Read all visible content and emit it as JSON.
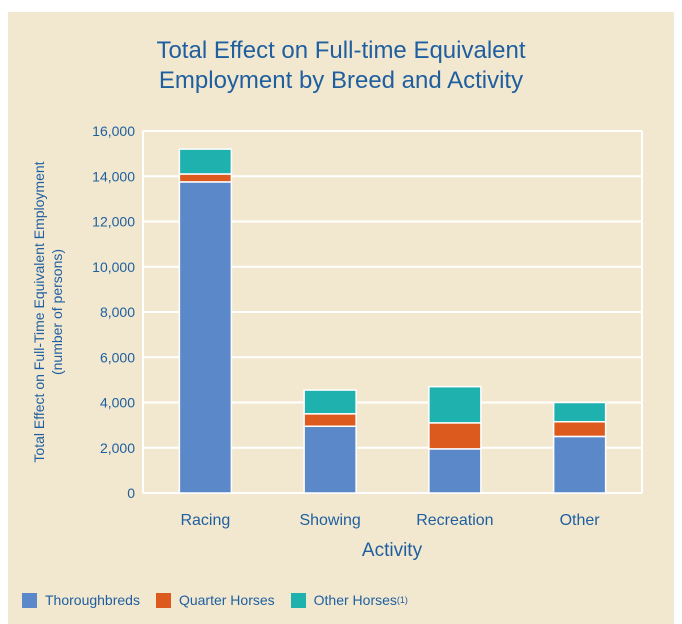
{
  "chart_data": {
    "type": "bar",
    "stacked": true,
    "title_lines": [
      "Total Effect on Full-time Equivalent",
      "Employment by Breed and Activity"
    ],
    "ylabel_lines": [
      "Total Effect on Full-Time Equivalent Employment",
      "(number of persons)"
    ],
    "xlabel": "Activity",
    "categories": [
      "Racing",
      "Showing",
      "Recreation",
      "Other"
    ],
    "series": [
      {
        "name": "Thoroughbreds",
        "color": "#5b88c8",
        "values": [
          13750,
          2950,
          1950,
          2500
        ]
      },
      {
        "name": "Quarter Horses",
        "color": "#dd5a1e",
        "values": [
          350,
          550,
          1150,
          650
        ]
      },
      {
        "name": "Other Horses",
        "color": "#1fb1ad",
        "values": [
          1100,
          1050,
          1600,
          850
        ]
      }
    ],
    "legend_note": "(1)",
    "ylim": [
      0,
      16000
    ],
    "yticks": [
      0,
      2000,
      4000,
      6000,
      8000,
      10000,
      12000,
      14000,
      16000
    ],
    "ytick_labels": [
      "0",
      "2,000",
      "4,000",
      "6,000",
      "8,000",
      "10,000",
      "12,000",
      "14,000",
      "16,000"
    ],
    "grid": true,
    "legend_position": "bottom"
  }
}
